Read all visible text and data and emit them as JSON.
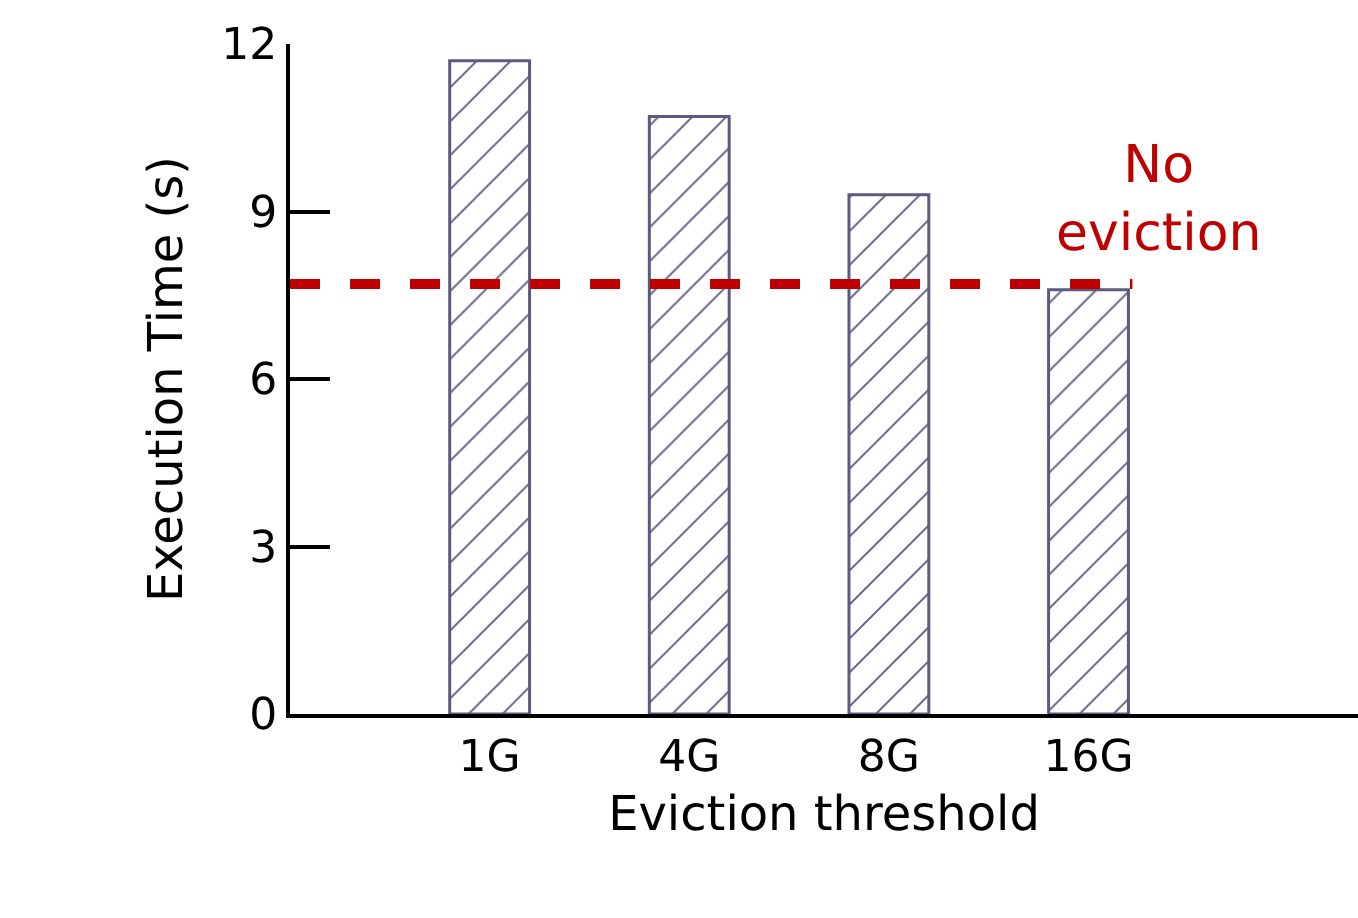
{
  "chart_data": {
    "type": "bar",
    "xlabel": "Eviction threshold",
    "ylabel": "Execution Time (s)",
    "categories": [
      "1G",
      "4G",
      "8G",
      "16G"
    ],
    "series": [
      {
        "color": "#5b5b82",
        "values": [
          11.7,
          10.7,
          9.3,
          7.6
        ]
      }
    ],
    "ylim": [
      0,
      12
    ],
    "yticks": [
      0,
      3,
      6,
      9,
      12
    ],
    "grid": false,
    "ref_lines": [
      {
        "axis": "y",
        "value": 7.7,
        "label": "No eviction",
        "color": "#c00000",
        "line_style": "dashed"
      }
    ]
  }
}
